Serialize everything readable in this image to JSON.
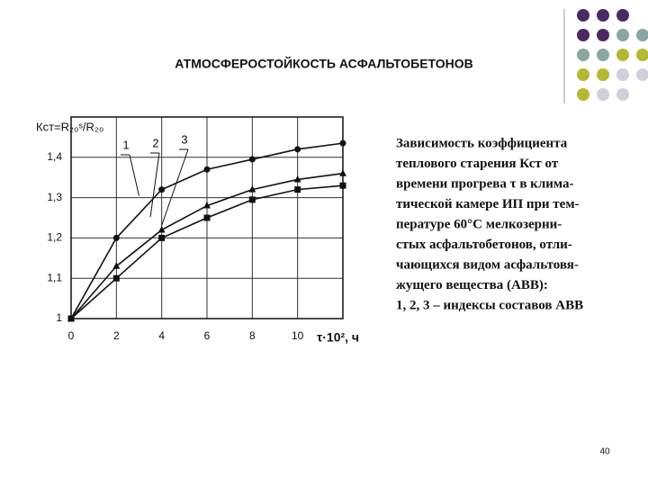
{
  "slide_title": "АТМОСФЕРОСТОЙКОСТЬ АСФАЛЬТОБЕТОНОВ",
  "chart_data": {
    "type": "line",
    "y_label": "Кст=R₂₀ˢ/R₂₀",
    "x_label": "τ·10², ч",
    "x": [
      0,
      2,
      4,
      6,
      8,
      10,
      12
    ],
    "xlim": [
      0,
      12
    ],
    "xticks": [
      0,
      2,
      4,
      6,
      8,
      10
    ],
    "ylim": [
      1,
      1.5
    ],
    "yticks": [
      1,
      {
        "value": 1.1,
        "label": "1,1"
      },
      {
        "value": 1.2,
        "label": "1,2"
      },
      {
        "value": 1.3,
        "label": "1,3"
      },
      {
        "value": 1.4,
        "label": "1,4"
      }
    ],
    "grid": true,
    "series": [
      {
        "name": "1",
        "color": "#111111",
        "marker": "circle",
        "values": [
          1.0,
          1.2,
          1.32,
          1.37,
          1.395,
          1.42,
          1.435
        ]
      },
      {
        "name": "2",
        "color": "#111111",
        "marker": "triangle",
        "values": [
          1.0,
          1.13,
          1.22,
          1.28,
          1.32,
          1.345,
          1.36
        ]
      },
      {
        "name": "3",
        "color": "#111111",
        "marker": "square",
        "values": [
          1.0,
          1.1,
          1.2,
          1.25,
          1.295,
          1.32,
          1.33
        ]
      }
    ]
  },
  "caption": [
    "Зависимость коэффициента",
    "теплового старения Кст от",
    "времени прогрева τ в клима-",
    "тической камере ИП при тем-",
    "пературе 60°С мелкозерни-",
    "стых асфальтобетонов, отли-",
    "чающихся видом асфальтовя-",
    "жущего вещества (АВВ):",
    "1, 2, 3 – индексы составов АВВ"
  ],
  "page_number": "40"
}
